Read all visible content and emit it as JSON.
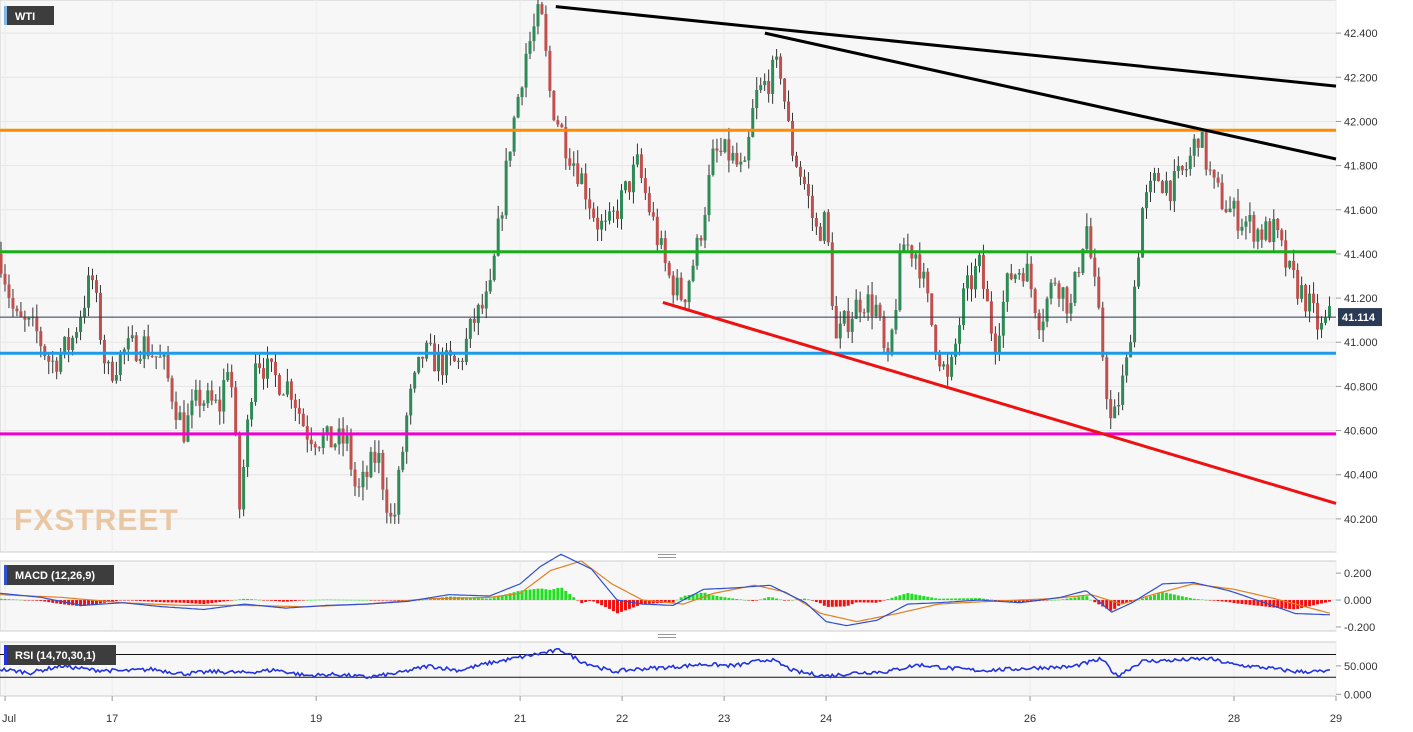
{
  "chart_data": [
    {
      "panel": "price",
      "type": "candlestick",
      "symbol": "WTI",
      "watermark": "FXSTREET",
      "ylim": [
        40.05,
        42.55
      ],
      "yticks": [
        "42.400",
        "42.200",
        "42.000",
        "41.800",
        "41.600",
        "41.400",
        "41.200",
        "41.000",
        "40.800",
        "40.600",
        "40.400",
        "40.200"
      ],
      "last_price": "41.114",
      "x_range": [
        15.9,
        29.0
      ],
      "x_ticks": [
        {
          "x": 15.95,
          "label": "Jul"
        },
        {
          "x": 17.0,
          "label": "17"
        },
        {
          "x": 19.0,
          "label": "19"
        },
        {
          "x": 21.0,
          "label": "21"
        },
        {
          "x": 22.0,
          "label": "22"
        },
        {
          "x": 23.0,
          "label": "23"
        },
        {
          "x": 24.0,
          "label": "24"
        },
        {
          "x": 26.0,
          "label": "26"
        },
        {
          "x": 28.0,
          "label": "28"
        },
        {
          "x": 29.0,
          "label": "29"
        }
      ],
      "path": [
        [
          15.9,
          41.4
        ],
        [
          16.05,
          41.1
        ],
        [
          16.25,
          41.05
        ],
        [
          16.4,
          40.9
        ],
        [
          16.6,
          41.0
        ],
        [
          16.8,
          41.3
        ],
        [
          16.95,
          40.85
        ],
        [
          17.1,
          40.95
        ],
        [
          17.3,
          41.0
        ],
        [
          17.5,
          40.9
        ],
        [
          17.7,
          40.6
        ],
        [
          17.85,
          40.75
        ],
        [
          18.05,
          40.7
        ],
        [
          18.15,
          40.95
        ],
        [
          18.25,
          40.25
        ],
        [
          18.4,
          40.95
        ],
        [
          18.55,
          40.85
        ],
        [
          18.75,
          40.8
        ],
        [
          18.9,
          40.6
        ],
        [
          19.1,
          40.55
        ],
        [
          19.3,
          40.55
        ],
        [
          19.4,
          40.3
        ],
        [
          19.6,
          40.5
        ],
        [
          19.75,
          40.15
        ],
        [
          19.9,
          40.7
        ],
        [
          20.05,
          40.95
        ],
        [
          20.25,
          40.9
        ],
        [
          20.4,
          40.9
        ],
        [
          20.55,
          41.1
        ],
        [
          20.7,
          41.2
        ],
        [
          20.9,
          41.9
        ],
        [
          21.05,
          42.3
        ],
        [
          21.2,
          42.5
        ],
        [
          21.3,
          42.1
        ],
        [
          21.45,
          41.9
        ],
        [
          21.6,
          41.75
        ],
        [
          21.75,
          41.55
        ],
        [
          21.85,
          41.5
        ],
        [
          22.0,
          41.65
        ],
        [
          22.15,
          41.8
        ],
        [
          22.3,
          41.55
        ],
        [
          22.45,
          41.3
        ],
        [
          22.6,
          41.2
        ],
        [
          22.75,
          41.45
        ],
        [
          22.9,
          41.85
        ],
        [
          23.05,
          41.85
        ],
        [
          23.2,
          41.75
        ],
        [
          23.3,
          42.1
        ],
        [
          23.45,
          42.2
        ],
        [
          23.55,
          42.25
        ],
        [
          23.65,
          41.9
        ],
        [
          23.8,
          41.7
        ],
        [
          23.9,
          41.5
        ],
        [
          24.0,
          41.55
        ],
        [
          24.1,
          41.0
        ],
        [
          24.2,
          41.1
        ],
        [
          24.35,
          41.2
        ],
        [
          24.5,
          41.15
        ],
        [
          24.6,
          40.85
        ],
        [
          24.75,
          41.45
        ],
        [
          24.9,
          41.4
        ],
        [
          25.05,
          41.05
        ],
        [
          25.2,
          40.8
        ],
        [
          25.35,
          41.2
        ],
        [
          25.5,
          41.35
        ],
        [
          25.65,
          41.0
        ],
        [
          25.8,
          41.3
        ],
        [
          25.95,
          41.35
        ],
        [
          26.1,
          41.1
        ],
        [
          26.25,
          41.3
        ],
        [
          26.4,
          41.15
        ],
        [
          26.55,
          41.55
        ],
        [
          26.7,
          41.0
        ],
        [
          26.8,
          40.6
        ],
        [
          26.95,
          40.9
        ],
        [
          27.1,
          41.6
        ],
        [
          27.25,
          41.75
        ],
        [
          27.4,
          41.7
        ],
        [
          27.55,
          41.8
        ],
        [
          27.65,
          41.95
        ],
        [
          27.8,
          41.7
        ],
        [
          27.95,
          41.6
        ],
        [
          28.1,
          41.55
        ],
        [
          28.25,
          41.5
        ],
        [
          28.4,
          41.5
        ],
        [
          28.55,
          41.3
        ],
        [
          28.7,
          41.2
        ],
        [
          28.85,
          41.05
        ],
        [
          28.95,
          41.12
        ]
      ],
      "horizontal_lines": [
        {
          "y": 41.96,
          "color": "#ff8c00"
        },
        {
          "y": 41.41,
          "color": "#1aac1a"
        },
        {
          "y": 40.95,
          "color": "#1e9be8"
        },
        {
          "y": 40.585,
          "color": "#f000d0"
        },
        {
          "y": 41.114,
          "color": "#2b3a55"
        }
      ],
      "trend_lines": [
        {
          "from": [
            21.35,
            42.52
          ],
          "to": [
            29.05,
            42.16
          ],
          "color": "#000000"
        },
        {
          "from": [
            23.4,
            42.4
          ],
          "to": [
            29.05,
            41.83
          ],
          "color": "#000000"
        },
        {
          "from": [
            22.4,
            41.18
          ],
          "to": [
            29.05,
            40.27
          ],
          "color": "#ee1111"
        }
      ],
      "colors": {
        "up": "#2e8b57",
        "down": "#c0504d",
        "wick": "#333333"
      }
    },
    {
      "panel": "macd",
      "type": "line+histogram",
      "label": "MACD (12,26,9)",
      "ylim": [
        -0.23,
        0.29
      ],
      "yticks": [
        "0.200",
        "0.000",
        "-0.200"
      ],
      "macd": [
        [
          15.9,
          0.05
        ],
        [
          16.3,
          0.02
        ],
        [
          16.7,
          -0.04
        ],
        [
          17.1,
          -0.02
        ],
        [
          17.5,
          -0.05
        ],
        [
          17.9,
          -0.07
        ],
        [
          18.3,
          -0.03
        ],
        [
          18.7,
          -0.06
        ],
        [
          19.1,
          -0.04
        ],
        [
          19.5,
          -0.03
        ],
        [
          19.9,
          -0.01
        ],
        [
          20.3,
          0.04
        ],
        [
          20.7,
          0.03
        ],
        [
          21.0,
          0.12
        ],
        [
          21.2,
          0.25
        ],
        [
          21.4,
          0.34
        ],
        [
          21.7,
          0.23
        ],
        [
          21.95,
          0.0
        ],
        [
          22.2,
          -0.03
        ],
        [
          22.5,
          -0.04
        ],
        [
          22.8,
          0.08
        ],
        [
          23.1,
          0.09
        ],
        [
          23.45,
          0.11
        ],
        [
          23.8,
          -0.02
        ],
        [
          24.0,
          -0.16
        ],
        [
          24.2,
          -0.19
        ],
        [
          24.5,
          -0.15
        ],
        [
          24.8,
          -0.03
        ],
        [
          25.1,
          -0.02
        ],
        [
          25.5,
          0.0
        ],
        [
          25.9,
          -0.02
        ],
        [
          26.3,
          0.02
        ],
        [
          26.55,
          0.07
        ],
        [
          26.8,
          -0.09
        ],
        [
          27.0,
          -0.02
        ],
        [
          27.3,
          0.12
        ],
        [
          27.6,
          0.13
        ],
        [
          27.95,
          0.07
        ],
        [
          28.3,
          -0.02
        ],
        [
          28.6,
          -0.1
        ],
        [
          28.95,
          -0.11
        ]
      ],
      "signal": [
        [
          15.9,
          0.04
        ],
        [
          16.5,
          0.02
        ],
        [
          17.1,
          -0.02
        ],
        [
          17.7,
          -0.04
        ],
        [
          18.3,
          -0.04
        ],
        [
          18.9,
          -0.05
        ],
        [
          19.5,
          -0.03
        ],
        [
          20.1,
          0.01
        ],
        [
          20.7,
          0.02
        ],
        [
          21.0,
          0.05
        ],
        [
          21.3,
          0.22
        ],
        [
          21.6,
          0.29
        ],
        [
          21.9,
          0.12
        ],
        [
          22.2,
          0.0
        ],
        [
          22.6,
          -0.03
        ],
        [
          22.9,
          0.05
        ],
        [
          23.3,
          0.11
        ],
        [
          23.6,
          0.06
        ],
        [
          23.95,
          -0.1
        ],
        [
          24.3,
          -0.16
        ],
        [
          24.7,
          -0.1
        ],
        [
          25.1,
          -0.03
        ],
        [
          25.6,
          -0.01
        ],
        [
          26.2,
          0.01
        ],
        [
          26.6,
          0.04
        ],
        [
          26.9,
          -0.03
        ],
        [
          27.2,
          0.04
        ],
        [
          27.6,
          0.12
        ],
        [
          28.0,
          0.08
        ],
        [
          28.4,
          0.01
        ],
        [
          28.95,
          -0.1
        ]
      ],
      "colors": {
        "macd": "#3050d0",
        "signal": "#e08020",
        "hist_up": "#22dd22",
        "hist_down": "#ee1111"
      }
    },
    {
      "panel": "rsi",
      "type": "line",
      "label": "RSI (14,70,30,1)",
      "ylim": [
        -3,
        92
      ],
      "yticks": [
        "50.000",
        "0.000"
      ],
      "levels": [
        70,
        30
      ],
      "values": [
        [
          15.9,
          44
        ],
        [
          16.2,
          38
        ],
        [
          16.5,
          50
        ],
        [
          16.8,
          43
        ],
        [
          17.1,
          41
        ],
        [
          17.4,
          44
        ],
        [
          17.7,
          36
        ],
        [
          18.0,
          40
        ],
        [
          18.3,
          38
        ],
        [
          18.6,
          43
        ],
        [
          18.9,
          33
        ],
        [
          19.2,
          35
        ],
        [
          19.5,
          30
        ],
        [
          19.8,
          37
        ],
        [
          20.1,
          50
        ],
        [
          20.4,
          42
        ],
        [
          20.7,
          55
        ],
        [
          21.0,
          65
        ],
        [
          21.2,
          72
        ],
        [
          21.4,
          78
        ],
        [
          21.6,
          58
        ],
        [
          21.9,
          40
        ],
        [
          22.2,
          45
        ],
        [
          22.5,
          48
        ],
        [
          22.8,
          53
        ],
        [
          23.1,
          50
        ],
        [
          23.45,
          62
        ],
        [
          23.7,
          40
        ],
        [
          24.0,
          32
        ],
        [
          24.3,
          38
        ],
        [
          24.6,
          40
        ],
        [
          24.9,
          52
        ],
        [
          25.2,
          46
        ],
        [
          25.5,
          42
        ],
        [
          25.8,
          44
        ],
        [
          26.1,
          47
        ],
        [
          26.4,
          48
        ],
        [
          26.7,
          62
        ],
        [
          26.85,
          32
        ],
        [
          27.1,
          58
        ],
        [
          27.45,
          60
        ],
        [
          27.75,
          63
        ],
        [
          28.0,
          52
        ],
        [
          28.3,
          47
        ],
        [
          28.6,
          40
        ],
        [
          28.95,
          40
        ]
      ],
      "colors": {
        "line": "#2233dd"
      }
    }
  ]
}
